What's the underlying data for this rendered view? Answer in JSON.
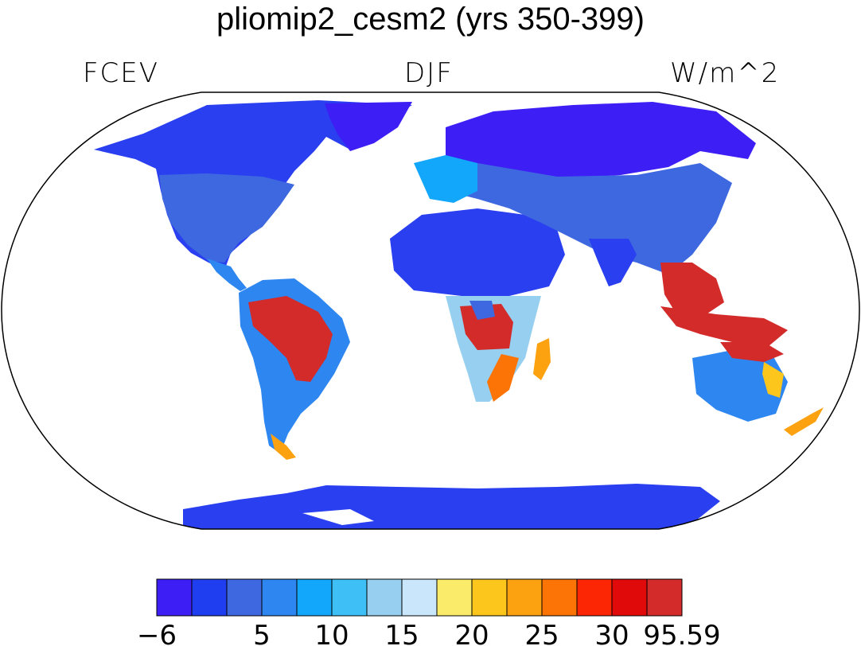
{
  "figure": {
    "title": "pliomip2_cesm2 (yrs 350-399)",
    "left_label": "FCEV",
    "center_label": "DJF",
    "right_label": "W/m^2"
  },
  "colorbar": {
    "colors": [
      "#3d1ef5",
      "#1f3ef0",
      "#3e68e0",
      "#2e86f0",
      "#12a7fa",
      "#3ebff5",
      "#96cff0",
      "#c9e6fa",
      "#fbeb6a",
      "#fcc61c",
      "#fca211",
      "#fc7406",
      "#fc2605",
      "#e00a0a",
      "#d32a2a"
    ],
    "tick_labels": [
      {
        "text": "−6",
        "index": 0
      },
      {
        "text": "5",
        "index": 3
      },
      {
        "text": "10",
        "index": 5
      },
      {
        "text": "15",
        "index": 7
      },
      {
        "text": "20",
        "index": 9
      },
      {
        "text": "25",
        "index": 11
      },
      {
        "text": "30",
        "index": 13
      },
      {
        "text": "95.59",
        "index": 15
      }
    ]
  },
  "map": {
    "projection": "robinson",
    "colors": {
      "cold": "#2a3ff0",
      "deep": "#3d1ef5",
      "mid": "#3e68e0",
      "light": "#12a7fa",
      "pale": "#96cff0",
      "yellow": "#fbeb6a",
      "orange": "#fca211",
      "red": "#d32a2a",
      "outline": "#000000"
    }
  }
}
